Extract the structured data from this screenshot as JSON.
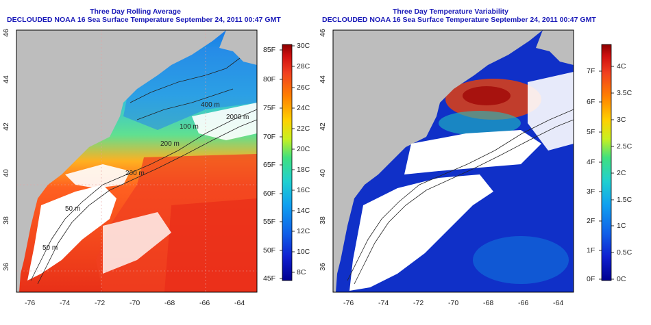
{
  "panels": [
    {
      "title_line1": "Three Day Rolling Average",
      "title_line2": "DECLOUDED NOAA 16 Sea Surface Temperature September 24, 2011 00:47 GMT",
      "x_ticks": [
        "-76",
        "-74",
        "-72",
        "-70",
        "-68",
        "-66",
        "-64"
      ],
      "y_ticks": [
        "36",
        "38",
        "40",
        "42",
        "44",
        "46"
      ],
      "contour_labels": [
        "400 m",
        "2000 m",
        "100 m",
        "200 m",
        "200 m",
        "50 m",
        "50 m"
      ],
      "colorbar_f": [
        "85F",
        "80F",
        "75F",
        "70F",
        "65F",
        "60F",
        "55F",
        "50F",
        "45F"
      ],
      "colorbar_c": [
        "30C",
        "28C",
        "26C",
        "24C",
        "22C",
        "20C",
        "18C",
        "16C",
        "14C",
        "12C",
        "10C",
        "8C"
      ],
      "colorbar_colors": [
        "#8b0000",
        "#d01010",
        "#f04020",
        "#ff8000",
        "#ffd000",
        "#c8f020",
        "#40e080",
        "#20d0d0",
        "#10a0f0",
        "#1060e8",
        "#1020d0",
        "#000090"
      ]
    },
    {
      "title_line1": "Three Day Temperature Variability",
      "title_line2": "DECLOUDED NOAA 16 Sea Surface Temperature September 24, 2011 00:47 GMT",
      "x_ticks": [
        "-76",
        "-74",
        "-72",
        "-70",
        "-68",
        "-66",
        "-64"
      ],
      "y_ticks": [
        "36",
        "38",
        "40",
        "42",
        "44",
        "46"
      ],
      "colorbar_f": [
        "7F",
        "6F",
        "5F",
        "4F",
        "3F",
        "2F",
        "1F",
        "0F"
      ],
      "colorbar_c": [
        "4C",
        "3.5C",
        "3C",
        "2.5C",
        "2C",
        "1.5C",
        "1C",
        "0.5C",
        "0C"
      ],
      "colorbar_colors": [
        "#8b0000",
        "#d01010",
        "#f04020",
        "#ff8000",
        "#ffd000",
        "#c8f020",
        "#40e080",
        "#20d0d0",
        "#10a0f0",
        "#1060e8",
        "#1020d0",
        "#000090"
      ]
    }
  ],
  "colors": {
    "land": "#bdbdbd",
    "cloud_mask": "#ffffff",
    "title": "#1a1ab8",
    "contour": "#222222"
  }
}
